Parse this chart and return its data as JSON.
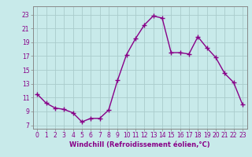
{
  "x": [
    0,
    1,
    2,
    3,
    4,
    5,
    6,
    7,
    8,
    9,
    10,
    11,
    12,
    13,
    14,
    15,
    16,
    17,
    18,
    19,
    20,
    21,
    22,
    23
  ],
  "y": [
    11.5,
    10.2,
    9.5,
    9.3,
    8.8,
    7.5,
    8.0,
    8.0,
    9.2,
    13.5,
    17.2,
    19.5,
    21.5,
    22.8,
    22.5,
    17.5,
    17.5,
    17.3,
    19.8,
    18.2,
    16.8,
    14.5,
    13.2,
    10.0
  ],
  "line_color": "#880088",
  "marker": "+",
  "marker_size": 4,
  "linewidth": 1.0,
  "bg_color": "#c8eaea",
  "grid_color": "#aacccc",
  "xlabel": "Windchill (Refroidissement éolien,°C)",
  "xlabel_fontsize": 6,
  "yticks": [
    7,
    9,
    11,
    13,
    15,
    17,
    19,
    21,
    23
  ],
  "xticks": [
    0,
    1,
    2,
    3,
    4,
    5,
    6,
    7,
    8,
    9,
    10,
    11,
    12,
    13,
    14,
    15,
    16,
    17,
    18,
    19,
    20,
    21,
    22,
    23
  ],
  "xlim": [
    -0.5,
    23.5
  ],
  "ylim": [
    6.5,
    24.2
  ],
  "tick_fontsize": 5.5,
  "tick_color": "#880088",
  "spine_color": "#888888"
}
